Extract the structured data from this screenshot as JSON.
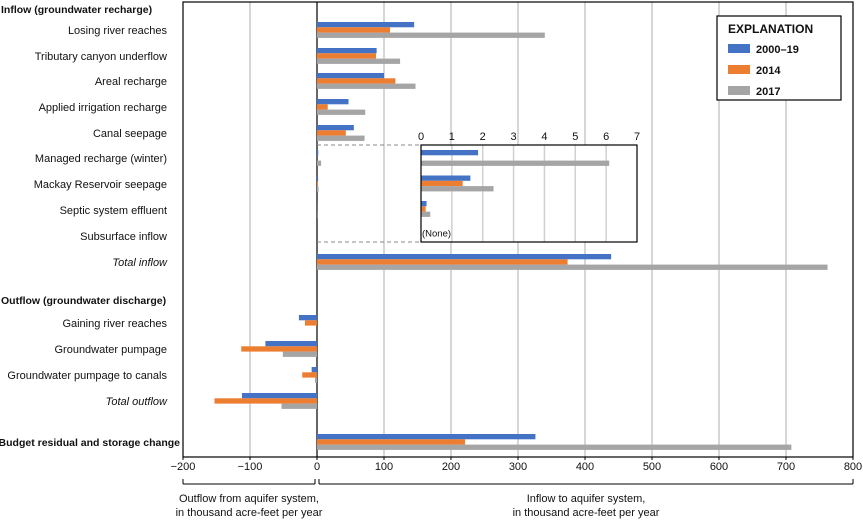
{
  "chart_data": {
    "type": "bar",
    "orientation": "horizontal",
    "xlim": [
      -200,
      800
    ],
    "xticks": [
      "−200",
      "−100",
      "0",
      "100",
      "200",
      "300",
      "400",
      "500",
      "600",
      "700",
      "800"
    ],
    "grid": true,
    "xlabel_left": [
      "Outflow from aquifer system,",
      "in thousand acre-feet per year"
    ],
    "xlabel_right": [
      "Inflow to aquifer system,",
      "in thousand acre-feet per year"
    ],
    "legend": {
      "title": "EXPLANATION",
      "position": "top-right"
    },
    "series": [
      {
        "name": "2000–19",
        "color": "#4472c4"
      },
      {
        "name": "2014",
        "color": "#ed7d31"
      },
      {
        "name": "2017",
        "color": "#a5a5a5"
      }
    ],
    "rows": [
      {
        "label": "Inflow (groundwater recharge)",
        "style": "header"
      },
      {
        "label": "Losing river reaches",
        "values": [
          145,
          109,
          340
        ]
      },
      {
        "label": "Tributary canyon underflow",
        "values": [
          89,
          88,
          124
        ]
      },
      {
        "label": "Areal recharge",
        "values": [
          100,
          117,
          147
        ]
      },
      {
        "label": "Applied irrigation recharge",
        "values": [
          47,
          16,
          72
        ]
      },
      {
        "label": "Canal seepage",
        "values": [
          55,
          43,
          71
        ]
      },
      {
        "label": "Managed recharge (winter)",
        "values": [
          1.85,
          0,
          6.1
        ]
      },
      {
        "label": "Mackay Reservoir seepage",
        "values": [
          1.6,
          1.35,
          2.35
        ]
      },
      {
        "label": "Septic system effluent",
        "values": [
          0.18,
          0.15,
          0.3
        ]
      },
      {
        "label": "Subsurface inflow",
        "values": null
      },
      {
        "label": "Total inflow",
        "style": "italic",
        "values": [
          439,
          374,
          762
        ]
      },
      {
        "label": "",
        "style": "spacer"
      },
      {
        "label": "Outflow (groundwater discharge)",
        "style": "header"
      },
      {
        "label": "Gaining river reaches",
        "values": [
          -27,
          -18,
          0
        ]
      },
      {
        "label": "Groundwater pumpage",
        "values": [
          -77,
          -113,
          -51
        ]
      },
      {
        "label": "Groundwater pumpage to canals",
        "values": [
          -8,
          -22,
          -3
        ]
      },
      {
        "label": "Total outflow",
        "style": "italic",
        "values": [
          -112,
          -153,
          -53
        ]
      },
      {
        "label": "",
        "style": "spacer"
      },
      {
        "label": "Budget residual and storage change",
        "style": "bold",
        "values": [
          326,
          221,
          708
        ]
      }
    ],
    "inset": {
      "xlim": [
        0,
        7
      ],
      "xticks": [
        "0",
        "1",
        "2",
        "3",
        "4",
        "5",
        "6",
        "7"
      ],
      "rows": [
        "Managed recharge (winter)",
        "Mackay Reservoir seepage",
        "Septic system effluent",
        "Subsurface inflow"
      ],
      "none_label": "(None)"
    }
  }
}
